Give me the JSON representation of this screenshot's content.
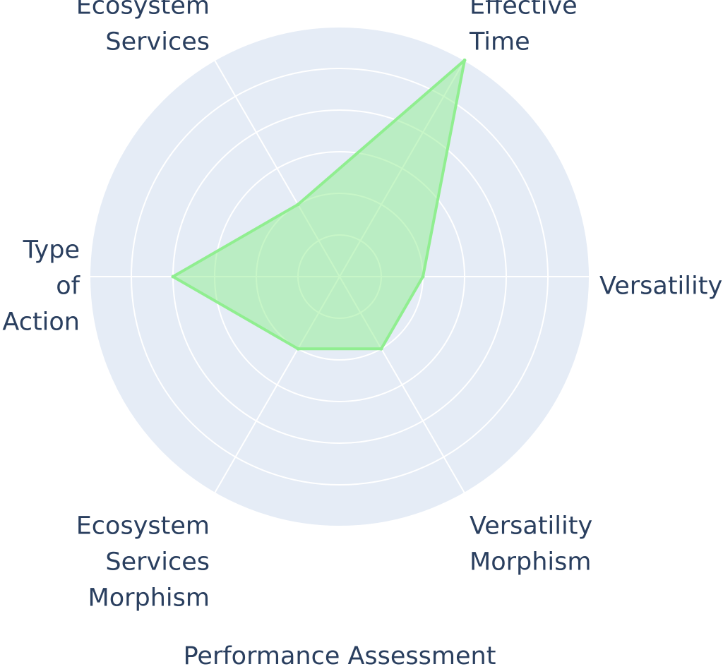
{
  "chart_data": {
    "type": "radar",
    "title": "Performance Assessment",
    "categories": [
      "Versatility",
      "Effective\nTime",
      "Ecosystem\nServices",
      "Type\nof\nAction",
      "Ecosystem\nServices\nMorphism",
      "Versatility\nMorphism"
    ],
    "series": [
      {
        "values": [
          2,
          6,
          2,
          4,
          2,
          2
        ],
        "color": "#90ee90"
      }
    ],
    "radial_range": [
      0,
      6
    ],
    "grid": true,
    "colors": {
      "polar_background": "#e5ecf6",
      "grid": "#ffffff",
      "text": "#2a3f5f",
      "fill": "rgba(144,238,144,0.5)",
      "line": "#90ee90"
    }
  }
}
